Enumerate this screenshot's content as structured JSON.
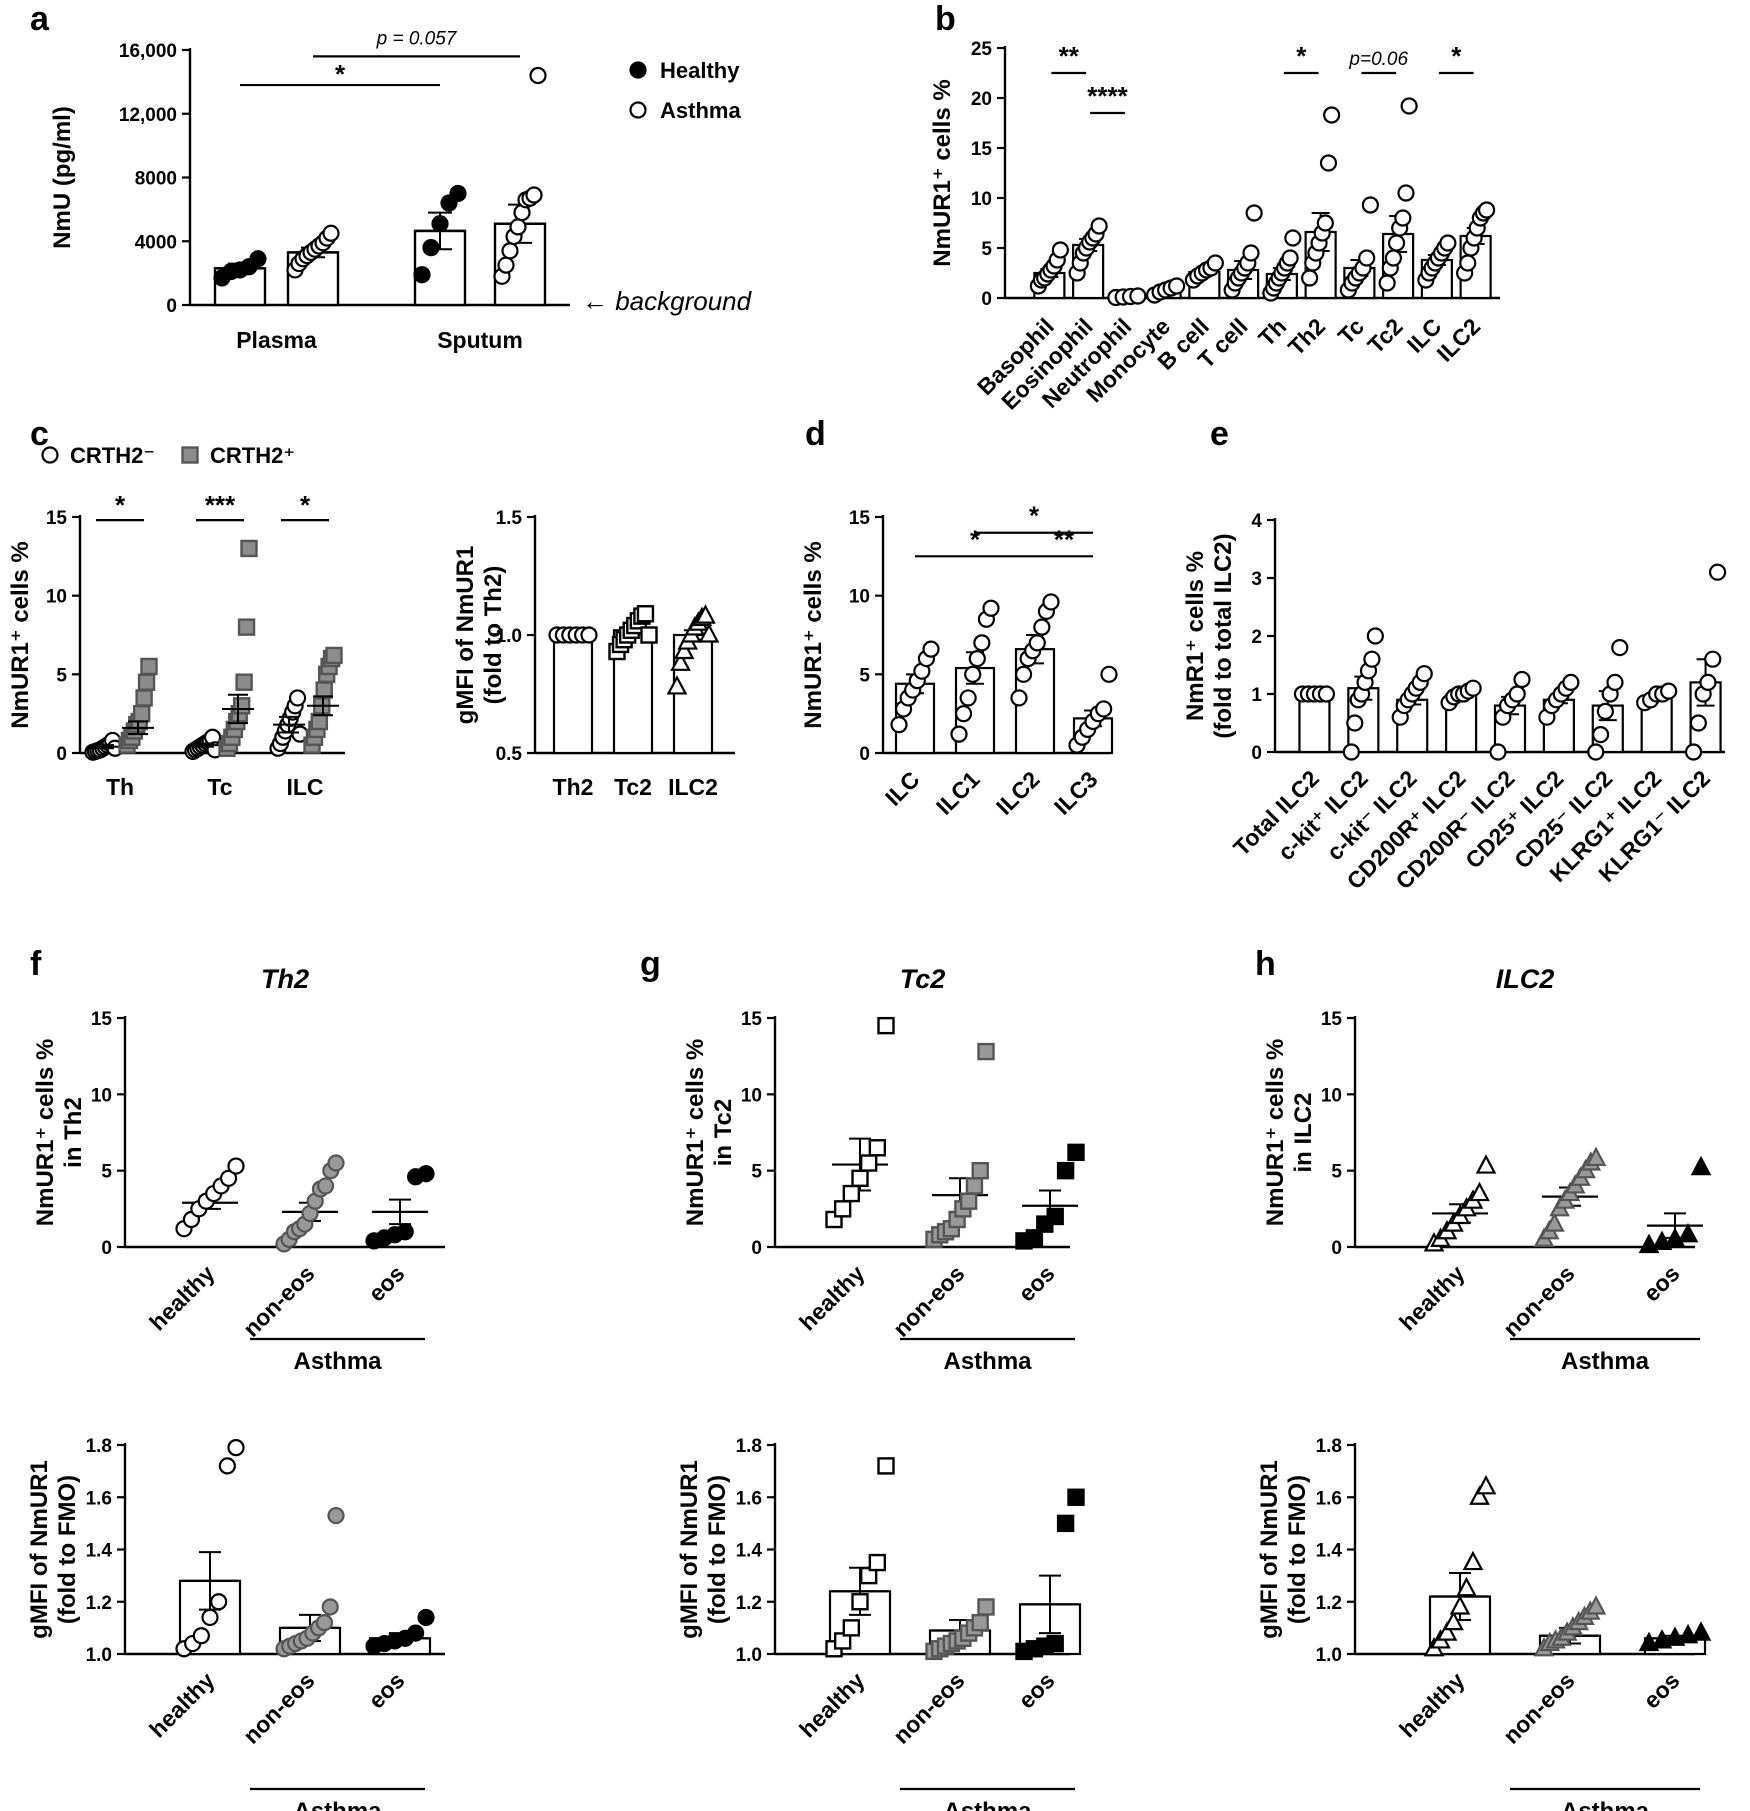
{
  "chart_data": [
    {
      "id": "a",
      "letter": "a",
      "type": "bar",
      "title": "",
      "xlabel": "",
      "ylabel": "NmU (pg/ml)",
      "ylim": [
        0,
        16000
      ],
      "yticks": [
        0,
        4000,
        8000,
        12000,
        16000
      ],
      "ytick_labels": [
        "0",
        "4000",
        "8000",
        "12,000",
        "16,000"
      ],
      "groups": [
        "Plasma",
        "Sputum"
      ],
      "legend": {
        "position": "top-right",
        "entries": [
          {
            "name": "Healthy",
            "marker": "circle",
            "fill": "#000000"
          },
          {
            "name": "Asthma",
            "marker": "circle",
            "fill": "#ffffff"
          }
        ]
      },
      "series": [
        {
          "name": "Healthy",
          "group": "Plasma",
          "mean": 2300,
          "sem": 300,
          "points": [
            1700,
            2100,
            2200,
            2400,
            2900
          ]
        },
        {
          "name": "Asthma",
          "group": "Plasma",
          "mean": 3300,
          "sem": 300,
          "points": [
            2200,
            2600,
            2900,
            3100,
            3300,
            3500,
            3700,
            3900,
            4200,
            4500
          ]
        },
        {
          "name": "Healthy",
          "group": "Sputum",
          "mean": 4650,
          "sem": 1150,
          "points": [
            1900,
            3600,
            5100,
            6400,
            7000
          ]
        },
        {
          "name": "Asthma",
          "group": "Sputum",
          "mean": 5100,
          "sem": 1200,
          "points": [
            1800,
            2500,
            3400,
            4300,
            4900,
            5800,
            6600,
            6700,
            6900,
            14400
          ]
        }
      ],
      "annotations": [
        {
          "text": "*",
          "from": 0,
          "to": 2,
          "y": 13800
        },
        {
          "text": "p = 0.057",
          "from": 1,
          "to": 3,
          "y": 15600
        }
      ],
      "note": "← background"
    },
    {
      "id": "b",
      "letter": "b",
      "type": "bar",
      "title": "",
      "xlabel": "",
      "ylabel": "NmUR1⁺ cells %",
      "ylim": [
        0,
        25
      ],
      "yticks": [
        0,
        5,
        10,
        15,
        20,
        25
      ],
      "categories": [
        "Basophil",
        "Eosinophil",
        "Neutrophil",
        "Monocyte",
        "B cell",
        "T cell",
        "Th",
        "Th2",
        "Tc",
        "Tc2",
        "ILC",
        "ILC2"
      ],
      "values": [
        2.5,
        5.3,
        0.2,
        0.8,
        2.6,
        2.8,
        2.4,
        6.6,
        3.0,
        6.4,
        3.8,
        6.2
      ],
      "sem": [
        0.4,
        0.6,
        0.1,
        0.15,
        0.3,
        0.9,
        0.6,
        1.9,
        0.8,
        1.8,
        0.5,
        0.8
      ],
      "points": [
        [
          1.2,
          1.8,
          2.0,
          2.4,
          2.8,
          3.2,
          3.8,
          4.8
        ],
        [
          2.5,
          3.5,
          4.5,
          5.0,
          5.6,
          6.0,
          6.4,
          7.2
        ],
        [
          0.05,
          0.1,
          0.15,
          0.2
        ],
        [
          0.3,
          0.6,
          0.8,
          1.0,
          1.2
        ],
        [
          1.8,
          2.2,
          2.5,
          2.8,
          3.0,
          3.5
        ],
        [
          0.8,
          1.5,
          2.0,
          2.5,
          3.0,
          3.5,
          4.5,
          8.5
        ],
        [
          0.5,
          1.0,
          1.5,
          2.0,
          2.5,
          3.0,
          3.5,
          4.0,
          6.0
        ],
        [
          2.0,
          3.5,
          4.5,
          5.5,
          6.5,
          7.5,
          13.5,
          18.3
        ],
        [
          0.8,
          1.5,
          2.0,
          2.5,
          3.0,
          4.0,
          9.3
        ],
        [
          1.5,
          3.0,
          4.0,
          5.5,
          7.0,
          8.0,
          10.5,
          19.2
        ],
        [
          1.8,
          2.5,
          3.0,
          3.5,
          4.0,
          4.5,
          5.0,
          5.5
        ],
        [
          2.5,
          3.5,
          5.0,
          6.0,
          7.0,
          8.0,
          8.5,
          8.8
        ]
      ],
      "annotations": [
        {
          "text": "**",
          "from": 0,
          "to": 1,
          "y": 22.5
        },
        {
          "text": "****",
          "from": 1,
          "to": 2,
          "y": 18.5
        },
        {
          "text": "*",
          "from": 6,
          "to": 7,
          "y": 22.5
        },
        {
          "text": "p=0.06",
          "from": 8,
          "to": 9,
          "y": 22.5,
          "italic": true
        },
        {
          "text": "*",
          "from": 10,
          "to": 11,
          "y": 22.5
        }
      ]
    },
    {
      "id": "c1",
      "letter": "c",
      "type": "scatter",
      "title": "",
      "xlabel": "",
      "ylabel": "NmUR1⁺ cells %",
      "ylim": [
        0,
        15
      ],
      "yticks": [
        0,
        5,
        10,
        15
      ],
      "categories": [
        "Th",
        "Tc",
        "ILC"
      ],
      "legend": {
        "position": "top-left",
        "entries": [
          {
            "name": "CRTH2⁻",
            "marker": "circle",
            "fill": "#ffffff"
          },
          {
            "name": "CRTH2⁺",
            "marker": "square",
            "fill": "#8c8c8c"
          }
        ]
      },
      "series": [
        {
          "name": "CRTH2⁻",
          "means": [
            0.4,
            0.5,
            1.8
          ],
          "sem": [
            0.1,
            0.1,
            0.5
          ],
          "points": [
            [
              0.05,
              0.1,
              0.15,
              0.2,
              0.3,
              0.4,
              0.5,
              0.6,
              0.8,
              0.3
            ],
            [
              0.1,
              0.2,
              0.3,
              0.4,
              0.5,
              0.6,
              0.7,
              0.8,
              1.0,
              0.2
            ],
            [
              0.3,
              0.6,
              1.0,
              1.4,
              1.8,
              2.2,
              2.6,
              3.0,
              3.5,
              1.2
            ]
          ]
        },
        {
          "name": "CRTH2⁺",
          "means": [
            1.6,
            2.8,
            3.0
          ],
          "sem": [
            0.4,
            0.9,
            0.6
          ],
          "points": [
            [
              0.5,
              0.8,
              1.0,
              1.4,
              1.8,
              2.0,
              2.5,
              3.5,
              4.5,
              5.5
            ],
            [
              0.3,
              0.6,
              1.0,
              1.5,
              2.0,
              2.5,
              3.0,
              4.5,
              8.0,
              13.0
            ],
            [
              0.5,
              1.0,
              1.5,
              2.0,
              3.0,
              4.0,
              5.0,
              5.5,
              6.0,
              6.2
            ]
          ]
        }
      ],
      "annotations": [
        {
          "text": "*",
          "category": 0,
          "y": 14.8
        },
        {
          "text": "***",
          "category": 1,
          "y": 14.8
        },
        {
          "text": "*",
          "category": 2,
          "y": 14.8
        }
      ]
    },
    {
      "id": "c2",
      "letter": "",
      "type": "bar",
      "title": "",
      "xlabel": "",
      "ylabel": "gMFI of NmUR1",
      "ylabel2": "(fold to Th2)",
      "ylim": [
        0.5,
        1.5
      ],
      "yticks": [
        0.5,
        1.0,
        1.5
      ],
      "categories": [
        "Th2",
        "Tc2",
        "ILC2"
      ],
      "values": [
        1.0,
        1.02,
        1.0
      ],
      "sem": [
        0.0,
        0.015,
        0.02
      ],
      "markers": [
        "circle",
        "square",
        "triangle"
      ],
      "points": [
        [
          1.0,
          1.0,
          1.0,
          1.0,
          1.0,
          1.0
        ],
        [
          0.93,
          0.96,
          0.98,
          1.0,
          1.02,
          1.04,
          1.06,
          1.08,
          1.09,
          1.0
        ],
        [
          0.78,
          0.88,
          0.93,
          0.97,
          1.0,
          1.03,
          1.05,
          1.07,
          1.08,
          1.0
        ]
      ]
    },
    {
      "id": "d",
      "letter": "d",
      "type": "bar",
      "title": "",
      "xlabel": "",
      "ylabel": "NmUR1⁺ cells %",
      "ylim": [
        0,
        15
      ],
      "yticks": [
        0,
        5,
        10,
        15
      ],
      "categories": [
        "ILC",
        "ILC1",
        "ILC2",
        "ILC3"
      ],
      "values": [
        4.4,
        5.4,
        6.6,
        2.2
      ],
      "sem": [
        0.6,
        1.0,
        0.9,
        0.5
      ],
      "points": [
        [
          1.8,
          2.8,
          3.5,
          4.0,
          4.6,
          5.2,
          6.0,
          6.6
        ],
        [
          1.2,
          2.5,
          3.5,
          5.0,
          6.0,
          7.0,
          8.5,
          9.2
        ],
        [
          3.5,
          5.0,
          6.0,
          6.5,
          7.0,
          8.0,
          9.0,
          9.6
        ],
        [
          0.5,
          1.0,
          1.5,
          2.0,
          2.5,
          2.8,
          5.0
        ]
      ],
      "annotations": [
        {
          "text": "*",
          "from": 0,
          "to": 2,
          "y": 12.5
        },
        {
          "text": "*",
          "from": 1,
          "to": 3,
          "y": 14.0
        },
        {
          "text": "**",
          "from": 2,
          "to": 3,
          "y": 12.5
        }
      ]
    },
    {
      "id": "e",
      "letter": "e",
      "type": "bar",
      "title": "",
      "xlabel": "",
      "ylabel": "NmR1⁺ cells %",
      "ylabel2": "(fold to total ILC2)",
      "ylim": [
        0,
        4
      ],
      "yticks": [
        0,
        1,
        2,
        3,
        4
      ],
      "categories": [
        "Total ILC2",
        "c-kit⁺ ILC2",
        "c-kit⁻ ILC2",
        "CD200R⁺ ILC2",
        "CD200R⁻ ILC2",
        "CD25⁺ ILC2",
        "CD25⁻ ILC2",
        "KLRG1⁺ ILC2",
        "KLRG1⁻ ILC2"
      ],
      "values": [
        1.0,
        1.1,
        0.9,
        0.98,
        0.8,
        0.9,
        0.8,
        0.95,
        1.2
      ],
      "sem": [
        0.0,
        0.2,
        0.08,
        0.04,
        0.15,
        0.06,
        0.25,
        0.04,
        0.4
      ],
      "points": [
        [
          1.0,
          1.0,
          1.0,
          1.0,
          1.0
        ],
        [
          0.0,
          0.5,
          0.9,
          1.0,
          1.2,
          1.4,
          1.6,
          2.0
        ],
        [
          0.6,
          0.8,
          0.9,
          1.0,
          1.1,
          1.2,
          1.35
        ],
        [
          0.85,
          0.95,
          1.0,
          1.0,
          1.05,
          1.1
        ],
        [
          0.0,
          0.6,
          0.8,
          0.9,
          1.0,
          1.25
        ],
        [
          0.6,
          0.8,
          0.9,
          1.0,
          1.1,
          1.2
        ],
        [
          0.0,
          0.3,
          0.7,
          1.0,
          1.2,
          1.8
        ],
        [
          0.85,
          0.9,
          1.0,
          1.0,
          1.05
        ],
        [
          0.0,
          0.5,
          1.0,
          1.2,
          1.6,
          3.1
        ]
      ]
    },
    {
      "id": "f1",
      "letter": "f",
      "type": "scatter",
      "title": "Th2",
      "xlabel": "",
      "ylabel": "NmUR1⁺ cells %",
      "ylabel2": "in Th2",
      "ylim": [
        0,
        15
      ],
      "yticks": [
        0,
        5,
        10,
        15
      ],
      "categories": [
        "healthy",
        "non-eos",
        "eos"
      ],
      "group_label": "Asthma",
      "marker": "circle",
      "fills": [
        "#ffffff",
        "#999999",
        "#000000"
      ],
      "means": [
        2.9,
        2.3,
        2.3
      ],
      "sem": [
        0.4,
        0.6,
        0.8
      ],
      "points": [
        [
          1.2,
          1.8,
          2.5,
          3.0,
          3.5,
          4.0,
          4.5,
          5.3
        ],
        [
          0.2,
          0.5,
          1.0,
          1.2,
          1.5,
          2.2,
          3.0,
          3.8,
          4.0,
          5.0,
          5.5
        ],
        [
          0.4,
          0.6,
          0.8,
          1.0,
          4.6,
          4.8
        ]
      ]
    },
    {
      "id": "f2",
      "letter": "",
      "type": "bar",
      "title": "",
      "xlabel": "",
      "ylabel": "gMFI of NmUR1",
      "ylabel2": "(fold to FMO)",
      "ylim": [
        1.0,
        1.8
      ],
      "yticks": [
        1.0,
        1.2,
        1.4,
        1.6,
        1.8
      ],
      "categories": [
        "healthy",
        "non-eos",
        "eos"
      ],
      "group_label": "Asthma",
      "marker": "circle",
      "fills": [
        "#ffffff",
        "#999999",
        "#000000"
      ],
      "values": [
        1.28,
        1.1,
        1.06
      ],
      "sem": [
        0.11,
        0.05,
        0.02
      ],
      "points": [
        [
          1.02,
          1.04,
          1.07,
          1.14,
          1.2,
          1.72,
          1.79
        ],
        [
          1.02,
          1.03,
          1.04,
          1.05,
          1.06,
          1.08,
          1.1,
          1.12,
          1.18,
          1.53
        ],
        [
          1.03,
          1.04,
          1.05,
          1.06,
          1.08,
          1.14
        ]
      ]
    },
    {
      "id": "g1",
      "letter": "g",
      "type": "scatter",
      "title": "Tc2",
      "xlabel": "",
      "ylabel": "NmUR1⁺ cells %",
      "ylabel2": "in Tc2",
      "ylim": [
        0,
        15
      ],
      "yticks": [
        0,
        5,
        10,
        15
      ],
      "categories": [
        "healthy",
        "non-eos",
        "eos"
      ],
      "group_label": "Asthma",
      "marker": "square",
      "fills": [
        "#ffffff",
        "#999999",
        "#000000"
      ],
      "means": [
        5.4,
        3.4,
        2.7
      ],
      "sem": [
        1.7,
        1.1,
        1.0
      ],
      "points": [
        [
          1.8,
          2.5,
          3.5,
          4.5,
          5.5,
          6.5,
          14.5
        ],
        [
          0.5,
          0.8,
          1.0,
          1.2,
          1.8,
          2.5,
          3.0,
          4.0,
          5.0,
          12.8
        ],
        [
          0.4,
          0.6,
          1.5,
          2.0,
          5.0,
          6.2
        ]
      ]
    },
    {
      "id": "g2",
      "letter": "",
      "type": "bar",
      "title": "",
      "xlabel": "",
      "ylabel": "gMFI of NmUR1",
      "ylabel2": "(fold to FMO)",
      "ylim": [
        1.0,
        1.8
      ],
      "yticks": [
        1.0,
        1.2,
        1.4,
        1.6,
        1.8
      ],
      "categories": [
        "healthy",
        "non-eos",
        "eos"
      ],
      "group_label": "Asthma",
      "marker": "square",
      "fills": [
        "#ffffff",
        "#999999",
        "#000000"
      ],
      "values": [
        1.24,
        1.09,
        1.19
      ],
      "sem": [
        0.09,
        0.04,
        0.11
      ],
      "points": [
        [
          1.02,
          1.05,
          1.1,
          1.2,
          1.3,
          1.35,
          1.72
        ],
        [
          1.01,
          1.02,
          1.03,
          1.04,
          1.05,
          1.06,
          1.08,
          1.1,
          1.12,
          1.18
        ],
        [
          1.01,
          1.02,
          1.03,
          1.04,
          1.5,
          1.6
        ]
      ]
    },
    {
      "id": "h1",
      "letter": "h",
      "type": "scatter",
      "title": "ILC2",
      "xlabel": "",
      "ylabel": "NmUR1⁺ cells %",
      "ylabel2": "in ILC2",
      "ylim": [
        0,
        15
      ],
      "yticks": [
        0,
        5,
        10,
        15
      ],
      "categories": [
        "healthy",
        "non-eos",
        "eos"
      ],
      "group_label": "Asthma",
      "marker": "triangle",
      "fills": [
        "#ffffff",
        "#999999",
        "#000000"
      ],
      "means": [
        2.2,
        3.3,
        1.4
      ],
      "sem": [
        0.6,
        0.6,
        0.8
      ],
      "points": [
        [
          0.2,
          0.5,
          1.0,
          1.5,
          2.0,
          2.5,
          3.0,
          3.5,
          5.3
        ],
        [
          0.5,
          1.0,
          1.5,
          2.5,
          3.0,
          3.5,
          4.0,
          4.5,
          5.0,
          5.5,
          5.8
        ],
        [
          0.1,
          0.3,
          0.5,
          0.8,
          5.2
        ]
      ]
    },
    {
      "id": "h2",
      "letter": "",
      "type": "bar",
      "title": "",
      "xlabel": "",
      "ylabel": "gMFI of NmUR1",
      "ylabel2": "(fold to FMO)",
      "ylim": [
        1.0,
        1.8
      ],
      "yticks": [
        1.0,
        1.2,
        1.4,
        1.6,
        1.8
      ],
      "categories": [
        "healthy",
        "non-eos",
        "eos"
      ],
      "group_label": "Asthma",
      "marker": "triangle",
      "fills": [
        "#ffffff",
        "#999999",
        "#000000"
      ],
      "values": [
        1.22,
        1.07,
        1.06
      ],
      "sem": [
        0.09,
        0.03,
        0.01
      ],
      "points": [
        [
          1.02,
          1.05,
          1.08,
          1.12,
          1.18,
          1.25,
          1.35,
          1.6,
          1.64
        ],
        [
          1.02,
          1.04,
          1.05,
          1.06,
          1.08,
          1.1,
          1.12,
          1.14,
          1.16,
          1.18
        ],
        [
          1.04,
          1.05,
          1.06,
          1.07,
          1.08
        ]
      ]
    }
  ]
}
